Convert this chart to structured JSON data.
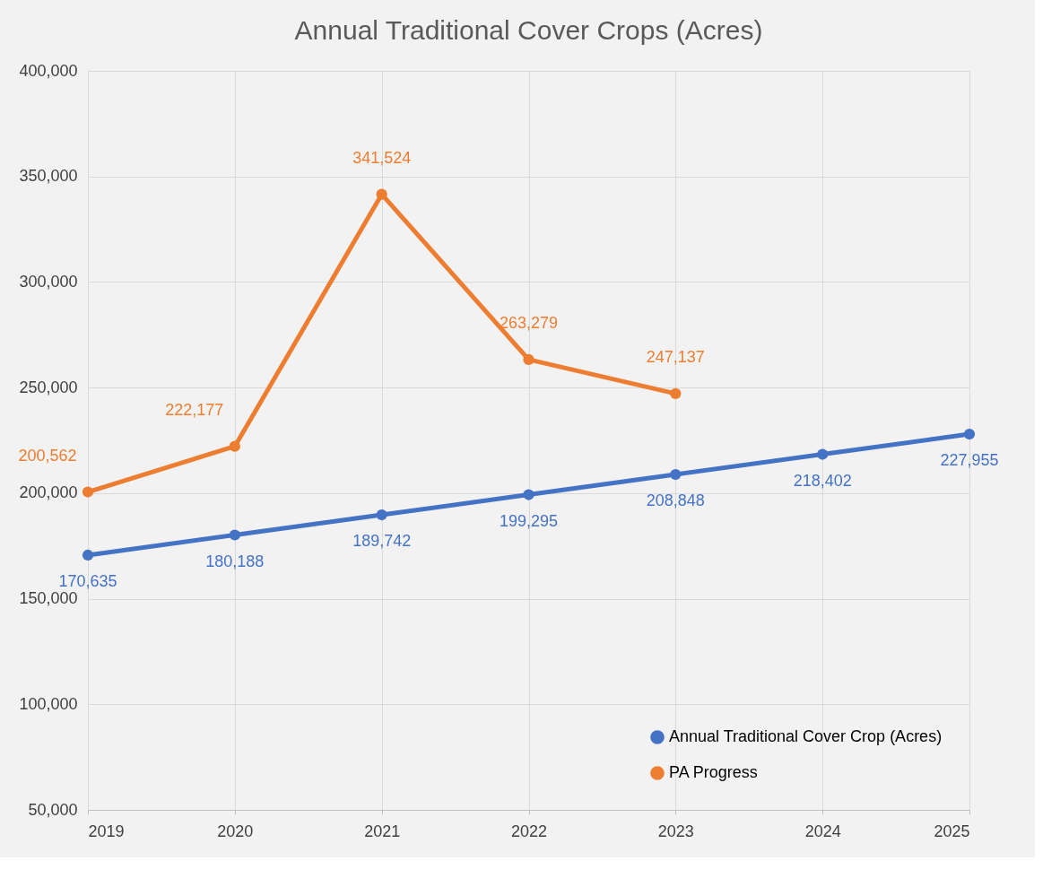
{
  "chart_data": {
    "type": "line",
    "title": "Annual Traditional Cover Crops (Acres)",
    "x": [
      2019,
      2020,
      2021,
      2022,
      2023,
      2024,
      2025
    ],
    "series": [
      {
        "name": "Annual Traditional Cover Crop (Acres)",
        "color": "#4472c4",
        "values": [
          170635,
          180188,
          189742,
          199295,
          208848,
          218402,
          227955
        ],
        "value_labels": [
          "170,635",
          "180,188",
          "189,742",
          "199,295",
          "208,848",
          "218,402",
          "227,955"
        ]
      },
      {
        "name": "PA Progress",
        "color": "#ed7d31",
        "values": [
          200562,
          222177,
          341524,
          263279,
          247137,
          null,
          null
        ],
        "value_labels": [
          "200,562",
          "222,177",
          "341,524",
          "263,279",
          "247,137",
          null,
          null
        ]
      }
    ],
    "xlim": [
      2019,
      2025
    ],
    "xticks": [
      2019,
      2020,
      2021,
      2022,
      2023,
      2024,
      2025
    ],
    "ylim": [
      50000,
      400000
    ],
    "yticks": [
      {
        "value": 50000,
        "label": "50,000"
      },
      {
        "value": 100000,
        "label": "100,000"
      },
      {
        "value": 150000,
        "label": "150,000"
      },
      {
        "value": 200000,
        "label": "200,000"
      },
      {
        "value": 250000,
        "label": "250,000"
      },
      {
        "value": 300000,
        "label": "300,000"
      },
      {
        "value": 350000,
        "label": "350,000"
      },
      {
        "value": 400000,
        "label": "400,000"
      }
    ],
    "grid": true,
    "legend": "bottom right",
    "marker": "circle",
    "line_style": "solid"
  }
}
